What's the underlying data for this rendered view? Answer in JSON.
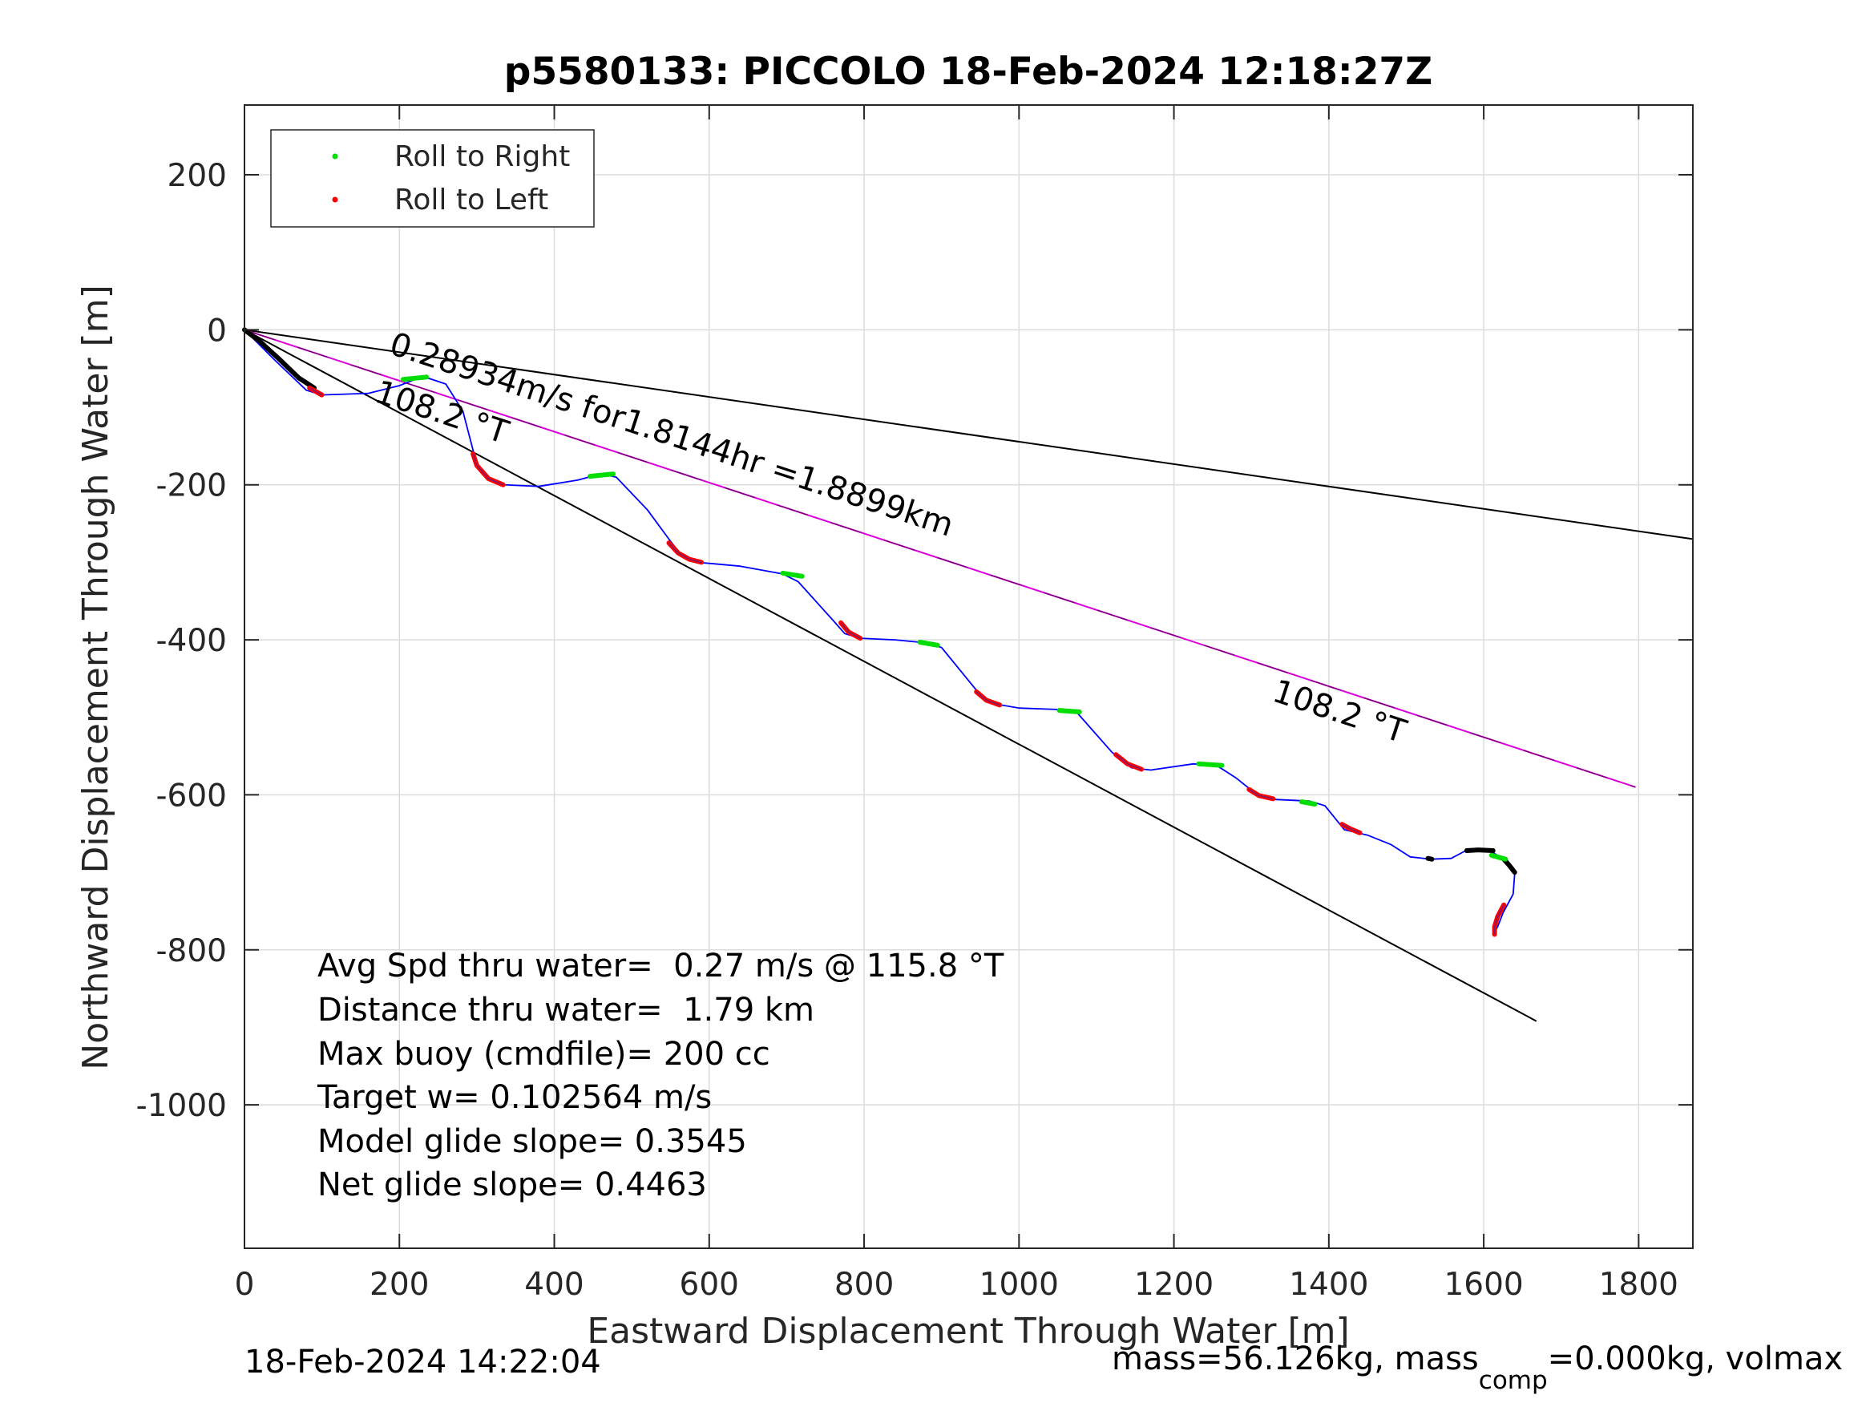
{
  "chart_data": {
    "type": "scatter",
    "title": "p5580133: PICCOLO 18-Feb-2024 12:18:27Z",
    "xlabel": "Eastward Displacement Through Water [m]",
    "ylabel": "Northward Displacement Through Water [m]",
    "xlim": [
      0,
      1870
    ],
    "ylim": [
      -1185,
      290
    ],
    "x_ticks": [
      0,
      200,
      400,
      600,
      800,
      1000,
      1200,
      1400,
      1600,
      1800
    ],
    "y_ticks": [
      200,
      0,
      -200,
      -400,
      -600,
      -800,
      -1000
    ],
    "x_tick_labels": [
      "0",
      "200",
      "400",
      "600",
      "800",
      "1000",
      "1200",
      "1400",
      "1600",
      "1800"
    ],
    "y_tick_labels": [
      "200",
      "0",
      "-200",
      "-400",
      "-600",
      "-800",
      "-1000"
    ],
    "grid": true,
    "legend_position": "top-left",
    "legend": [
      {
        "label": "Roll to Right",
        "color": "#00dd00"
      },
      {
        "label": "Roll to Left",
        "color": "#ff0000"
      }
    ],
    "colors": {
      "track": "#0000ff",
      "heading": "#000000",
      "current": "#dd00dd"
    },
    "track": {
      "name": "glider track",
      "x": [
        0,
        40,
        80,
        100,
        160,
        200,
        230,
        260,
        282,
        295,
        300,
        315,
        335,
        380,
        430,
        460,
        480,
        520,
        548,
        565,
        585,
        640,
        695,
        715,
        760,
        775,
        795,
        840,
        880,
        900,
        945,
        965,
        1000,
        1055,
        1075,
        1120,
        1145,
        1170,
        1225,
        1255,
        1280,
        1305,
        1330,
        1375,
        1395,
        1420,
        1450,
        1480,
        1505,
        1532,
        1558,
        1575,
        1580,
        1610,
        1628,
        1640,
        1638,
        1625,
        1618,
        1614
      ],
      "y": [
        0,
        -40,
        -78,
        -84,
        -82,
        -72,
        -60,
        -70,
        -105,
        -155,
        -172,
        -192,
        -200,
        -202,
        -194,
        -186,
        -190,
        -232,
        -270,
        -292,
        -300,
        -305,
        -315,
        -325,
        -375,
        -392,
        -398,
        -400,
        -404,
        -410,
        -465,
        -482,
        -488,
        -490,
        -494,
        -545,
        -565,
        -568,
        -560,
        -562,
        -578,
        -598,
        -606,
        -608,
        -614,
        -645,
        -652,
        -664,
        -680,
        -683,
        -682,
        -673,
        -673,
        -673,
        -685,
        -702,
        -728,
        -752,
        -770,
        -778
      ]
    },
    "roll_to_right": [
      {
        "x": [
          205,
          235
        ],
        "y": [
          -64,
          -61
        ]
      },
      {
        "x": [
          446,
          476
        ],
        "y": [
          -189,
          -186
        ]
      },
      {
        "x": [
          695,
          720
        ],
        "y": [
          -314,
          -318
        ]
      },
      {
        "x": [
          872,
          895
        ],
        "y": [
          -403,
          -407
        ]
      },
      {
        "x": [
          1052,
          1078
        ],
        "y": [
          -491,
          -493
        ]
      },
      {
        "x": [
          1232,
          1262
        ],
        "y": [
          -560,
          -562
        ]
      },
      {
        "x": [
          1365,
          1382
        ],
        "y": [
          -609,
          -612
        ]
      },
      {
        "x": [
          1610,
          1628
        ],
        "y": [
          -678,
          -683
        ]
      }
    ],
    "roll_to_left": [
      {
        "x": [
          84,
          100
        ],
        "y": [
          -75,
          -84
        ]
      },
      {
        "x": [
          295,
          300,
          315,
          334
        ],
        "y": [
          -160,
          -175,
          -192,
          -200
        ]
      },
      {
        "x": [
          548,
          560,
          574,
          590
        ],
        "y": [
          -275,
          -288,
          -296,
          -300
        ]
      },
      {
        "x": [
          770,
          780,
          795
        ],
        "y": [
          -378,
          -390,
          -398
        ]
      },
      {
        "x": [
          945,
          958,
          975
        ],
        "y": [
          -467,
          -478,
          -484
        ]
      },
      {
        "x": [
          1125,
          1140,
          1158
        ],
        "y": [
          -548,
          -560,
          -567
        ]
      },
      {
        "x": [
          1297,
          1310,
          1328
        ],
        "y": [
          -593,
          -601,
          -605
        ]
      },
      {
        "x": [
          1417,
          1428,
          1440
        ],
        "y": [
          -638,
          -644,
          -649
        ]
      },
      {
        "x": [
          1626,
          1618,
          1614,
          1614
        ],
        "y": [
          -742,
          -757,
          -770,
          -780
        ]
      }
    ],
    "black_segments": [
      {
        "x": [
          0,
          20,
          45,
          70,
          90
        ],
        "y": [
          0,
          -15,
          -38,
          -62,
          -75
        ]
      },
      {
        "x": [
          1528,
          1533
        ],
        "y": [
          -682,
          -683
        ]
      },
      {
        "x": [
          1578,
          1593,
          1612
        ],
        "y": [
          -672,
          -671,
          -672
        ]
      },
      {
        "x": [
          1625,
          1633,
          1640
        ],
        "y": [
          -682,
          -691,
          -700
        ]
      }
    ],
    "reference_lines": [
      {
        "name": "heading ray 1",
        "x": [
          0,
          1870
        ],
        "y": [
          0,
          -270
        ],
        "color": "#000000"
      },
      {
        "name": "heading ray 2",
        "x": [
          0,
          1668
        ],
        "y": [
          0,
          -892
        ],
        "color": "#000000"
      },
      {
        "name": "current vector",
        "x": [
          0,
          1796
        ],
        "y": [
          0,
          -590
        ],
        "color": "#dd00dd"
      }
    ],
    "annotations": [
      {
        "text": "0.28934m/s for1.8144hr =1.8899km",
        "x": 185,
        "y": -30,
        "rotation": 18.1
      },
      {
        "text": "108.2 °T",
        "x": 166,
        "y": -92,
        "rotation": 18.1
      },
      {
        "text": "108.2 °T",
        "x": 1325,
        "y": -478,
        "rotation": 18.1
      }
    ],
    "stats": [
      "Avg Spd thru water=  0.27 m/s @ 115.8 °T",
      "Distance thru water=  1.79 km",
      "Max buoy (cmdfile)= 200 cc",
      "Target w= 0.102564 m/s",
      "Model glide slope= 0.3545",
      "Net glide slope= 0.4463"
    ]
  },
  "footer": {
    "timestamp": "18-Feb-2024 14:22:04",
    "mass_part1": "mass=56.126kg, mass",
    "mass_sub": "comp",
    "mass_part2": "=0.000kg, volmax"
  }
}
